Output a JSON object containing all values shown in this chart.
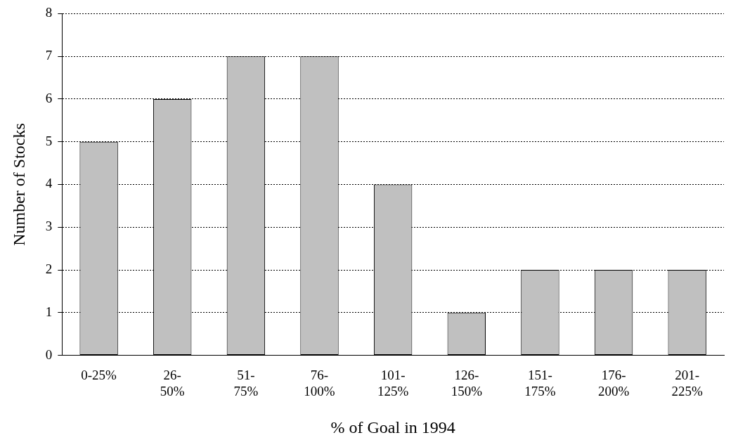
{
  "chart_data": {
    "type": "bar",
    "xlabel": "% of Goal in 1994",
    "ylabel": "Number of Stocks",
    "categories": [
      "0-25%",
      "26-50%",
      "51-75%",
      "76-100%",
      "101-125%",
      "126-150%",
      "151-175%",
      "176-200%",
      "201-225%"
    ],
    "values": [
      5,
      6,
      7,
      7,
      4,
      1,
      2,
      2,
      2
    ],
    "color": "#c0c0c0",
    "ylim": [
      0,
      8
    ],
    "yticks": [
      0,
      1,
      2,
      3,
      4,
      5,
      6,
      7,
      8
    ],
    "grid": "y",
    "legend": false
  }
}
